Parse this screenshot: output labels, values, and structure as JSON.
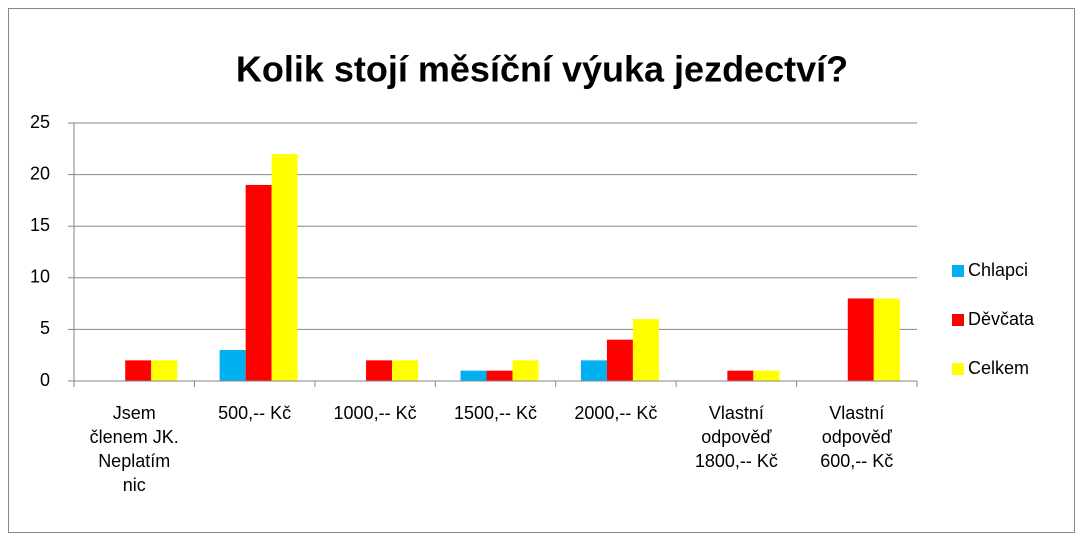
{
  "chart_data": {
    "type": "bar",
    "title": "Kolik stojí měsíční výuka jezdectví?",
    "categories": [
      "Jsem členem JK. Neplatím nic",
      "500,-- Kč",
      "1000,-- Kč",
      "1500,-- Kč",
      "2000,-- Kč",
      "Vlastní odpověď 1800,-- Kč",
      "Vlastní odpověď 600,-- Kč"
    ],
    "series": [
      {
        "name": "Chlapci",
        "color": "#00b0f0",
        "values": [
          0,
          3,
          0,
          1,
          2,
          0,
          0
        ]
      },
      {
        "name": "Děvčata",
        "color": "#ff0000",
        "values": [
          2,
          19,
          2,
          1,
          4,
          1,
          8
        ]
      },
      {
        "name": "Celkem",
        "color": "#ffff00",
        "values": [
          2,
          22,
          2,
          2,
          6,
          1,
          8
        ]
      }
    ],
    "ylim": [
      0,
      25
    ],
    "yticks": [
      0,
      5,
      10,
      15,
      20,
      25
    ],
    "grid": true,
    "legend": "right"
  }
}
